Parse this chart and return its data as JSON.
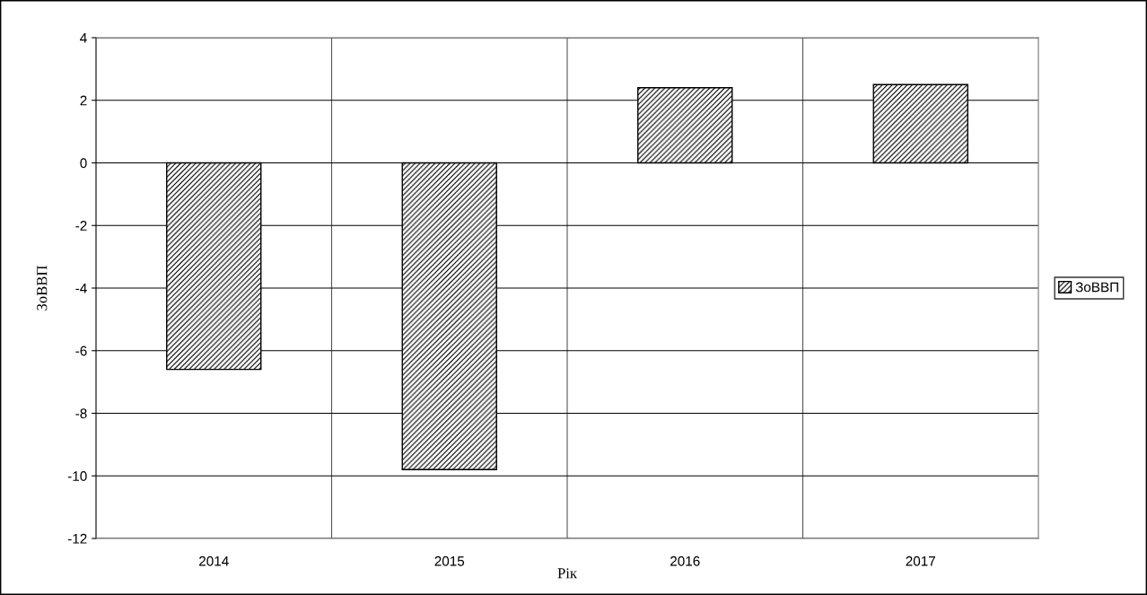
{
  "chart_data": {
    "type": "bar",
    "xlabel": "Рік",
    "ylabel": "ЗоВВП",
    "categories": [
      "2014",
      "2015",
      "2016",
      "2017"
    ],
    "series": [
      {
        "name": "ЗоВВП",
        "color": "#000000",
        "values": [
          -6.6,
          -9.8,
          2.4,
          2.5
        ]
      }
    ],
    "ylim": [
      -12,
      4
    ],
    "yticks": [
      -12,
      -10,
      -8,
      -6,
      -4,
      -2,
      0,
      2,
      4
    ],
    "grid": true,
    "legend": "right"
  }
}
